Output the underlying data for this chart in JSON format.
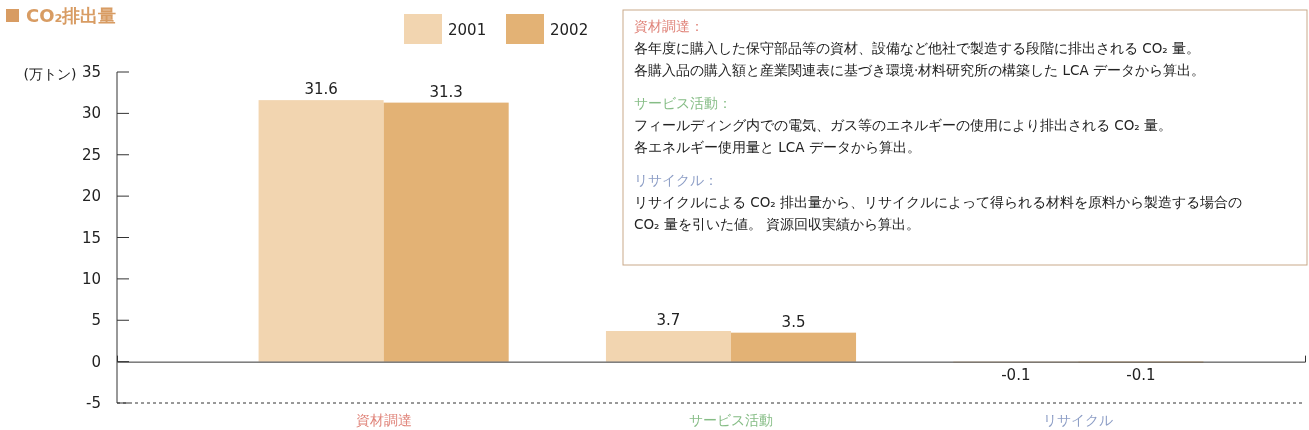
{
  "chart_data": {
    "type": "bar",
    "title": "CO₂排出量",
    "ylabel": "(万トン)",
    "categories": [
      "資材調達",
      "サービス活動",
      "リサイクル"
    ],
    "series": [
      {
        "name": "2001",
        "color": "#f2d5b0",
        "values": [
          31.6,
          3.7,
          -0.1
        ]
      },
      {
        "name": "2002",
        "color": "#e3b275",
        "values": [
          31.3,
          3.5,
          -0.1
        ]
      }
    ],
    "ylim": [
      -5,
      35
    ],
    "yticks": [
      -5,
      0,
      5,
      10,
      15,
      20,
      25,
      30,
      35
    ],
    "grid": false,
    "legend": "top",
    "data_labels": true,
    "annotations": [
      "資材調達：",
      "各年度に購入した保守部品等の資材、設備など他社で製造する段階に排出される CO₂ 量。",
      "各購入品の購入額と産業関連表に基づき環境·材料研究所の構築した LCA データから算出。",
      "サービス活動：",
      "フィールディング内での電気、ガス等のエネルギーの使用により排出される CO₂ 量。",
      "各エネルギー使用量と LCA データから算出。",
      "リサイクル：",
      "リサイクルによる CO₂ 排出量から、リサイクルによって得られる材料を原料から製造する場合の",
      "CO₂ 量を引いた値。 資源回収実績から算出。"
    ]
  }
}
